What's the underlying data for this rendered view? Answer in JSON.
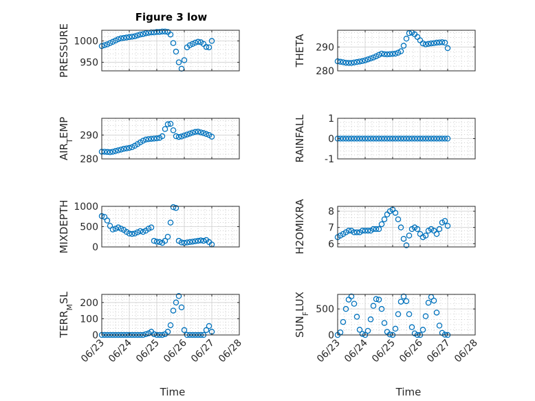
{
  "figure": {
    "title": "Figure 3 low",
    "marker_color": "#0072bd",
    "axis_color": "#262626",
    "grid_color": "#b0b0b0"
  },
  "time_axis": {
    "label": "Time",
    "ticks": [
      {
        "t": 0,
        "label": "06/23"
      },
      {
        "t": 1,
        "label": "06/24"
      },
      {
        "t": 2,
        "label": "06/25"
      },
      {
        "t": 3,
        "label": "06/26"
      },
      {
        "t": 4,
        "label": "06/27"
      },
      {
        "t": 5,
        "label": "06/28"
      }
    ]
  },
  "chart_data": [
    {
      "type": "scatter",
      "name": "pressure",
      "ylabel": "PRESSURE",
      "xlim": [
        0,
        5
      ],
      "ylim": [
        930,
        1025
      ],
      "yticks": [
        950,
        1000
      ],
      "x": [
        0,
        0.1,
        0.2,
        0.3,
        0.4,
        0.5,
        0.6,
        0.7,
        0.8,
        0.9,
        1.0,
        1.1,
        1.2,
        1.3,
        1.4,
        1.5,
        1.6,
        1.7,
        1.8,
        1.9,
        2.0,
        2.1,
        2.2,
        2.3,
        2.4,
        2.5,
        2.6,
        2.7,
        2.8,
        2.9,
        3.0,
        3.1,
        3.2,
        3.3,
        3.4,
        3.5,
        3.6,
        3.7,
        3.8,
        3.9,
        4.0
      ],
      "y": [
        988,
        990,
        992,
        995,
        998,
        1001,
        1004,
        1006,
        1007,
        1008,
        1009,
        1010,
        1011,
        1013,
        1015,
        1016,
        1018,
        1019,
        1020,
        1020,
        1021,
        1021,
        1022,
        1022,
        1021,
        1015,
        995,
        975,
        950,
        935,
        955,
        985,
        990,
        993,
        996,
        998,
        997,
        993,
        986,
        985,
        1000
      ]
    },
    {
      "type": "scatter",
      "name": "theta",
      "ylabel": "THETA",
      "xlim": [
        0,
        5
      ],
      "ylim": [
        280,
        297
      ],
      "yticks": [
        280,
        290
      ],
      "x": [
        0,
        0.1,
        0.2,
        0.3,
        0.4,
        0.5,
        0.6,
        0.7,
        0.8,
        0.9,
        1.0,
        1.1,
        1.2,
        1.3,
        1.4,
        1.5,
        1.6,
        1.7,
        1.8,
        1.9,
        2.0,
        2.1,
        2.2,
        2.3,
        2.4,
        2.5,
        2.6,
        2.7,
        2.8,
        2.9,
        3.0,
        3.1,
        3.2,
        3.3,
        3.4,
        3.5,
        3.6,
        3.7,
        3.8,
        3.9,
        4.0
      ],
      "y": [
        284,
        283.8,
        283.6,
        283.4,
        283.3,
        283.3,
        283.5,
        283.7,
        283.9,
        284.1,
        284.4,
        284.8,
        285.2,
        285.6,
        286.1,
        286.7,
        287.2,
        287.0,
        286.9,
        287.0,
        287.1,
        287.2,
        287.6,
        288.2,
        290.5,
        293.5,
        295.8,
        296.0,
        295.3,
        294.2,
        292.8,
        291.5,
        291.1,
        291.3,
        291.5,
        291.6,
        291.8,
        291.9,
        292.0,
        291.8,
        289.5
      ]
    },
    {
      "type": "scatter",
      "name": "air_temp",
      "ylabel": "AIR_TEMP",
      "xlim": [
        0,
        5
      ],
      "ylim": [
        280,
        297
      ],
      "yticks": [
        280,
        290
      ],
      "x": [
        0,
        0.1,
        0.2,
        0.3,
        0.4,
        0.5,
        0.6,
        0.7,
        0.8,
        0.9,
        1.0,
        1.1,
        1.2,
        1.3,
        1.4,
        1.5,
        1.6,
        1.7,
        1.8,
        1.9,
        2.0,
        2.1,
        2.2,
        2.3,
        2.4,
        2.5,
        2.6,
        2.7,
        2.8,
        2.9,
        3.0,
        3.1,
        3.2,
        3.3,
        3.4,
        3.5,
        3.6,
        3.7,
        3.8,
        3.9,
        4.0
      ],
      "y": [
        283,
        283,
        282.9,
        282.8,
        283.0,
        283.3,
        283.6,
        283.9,
        284.2,
        284.4,
        284.6,
        284.9,
        285.5,
        286.2,
        286.9,
        287.6,
        288.1,
        288.3,
        288.4,
        288.5,
        288.6,
        288.8,
        289.5,
        292.5,
        294.5,
        294.7,
        292.0,
        289.5,
        289.2,
        289.4,
        289.8,
        290.2,
        290.6,
        291.0,
        291.3,
        291.4,
        291.1,
        290.8,
        290.4,
        290.0,
        289.3
      ]
    },
    {
      "type": "scatter",
      "name": "rainfall",
      "ylabel": "RAINFALL",
      "xlim": [
        0,
        5
      ],
      "ylim": [
        -1,
        1
      ],
      "yticks": [
        -1,
        0,
        1
      ],
      "x": [
        0,
        0.1,
        0.2,
        0.3,
        0.4,
        0.5,
        0.6,
        0.7,
        0.8,
        0.9,
        1.0,
        1.1,
        1.2,
        1.3,
        1.4,
        1.5,
        1.6,
        1.7,
        1.8,
        1.9,
        2.0,
        2.1,
        2.2,
        2.3,
        2.4,
        2.5,
        2.6,
        2.7,
        2.8,
        2.9,
        3.0,
        3.1,
        3.2,
        3.3,
        3.4,
        3.5,
        3.6,
        3.7,
        3.8,
        3.9,
        4.0
      ],
      "y": [
        0,
        0,
        0,
        0,
        0,
        0,
        0,
        0,
        0,
        0,
        0,
        0,
        0,
        0,
        0,
        0,
        0,
        0,
        0,
        0,
        0,
        0,
        0,
        0,
        0,
        0,
        0,
        0,
        0,
        0,
        0,
        0,
        0,
        0,
        0,
        0,
        0,
        0,
        0,
        0,
        0
      ]
    },
    {
      "type": "scatter",
      "name": "mixdepth",
      "ylabel": "MIXDEPTH",
      "xlim": [
        0,
        5
      ],
      "ylim": [
        0,
        1000
      ],
      "yticks": [
        0,
        500,
        1000
      ],
      "x": [
        0,
        0.1,
        0.2,
        0.3,
        0.4,
        0.5,
        0.6,
        0.7,
        0.8,
        0.9,
        1.0,
        1.1,
        1.2,
        1.3,
        1.4,
        1.5,
        1.6,
        1.7,
        1.8,
        1.9,
        2.0,
        2.1,
        2.2,
        2.3,
        2.4,
        2.5,
        2.6,
        2.7,
        2.8,
        2.9,
        3.0,
        3.1,
        3.2,
        3.3,
        3.4,
        3.5,
        3.6,
        3.7,
        3.8,
        3.9,
        4.0
      ],
      "y": [
        760,
        740,
        650,
        520,
        430,
        450,
        480,
        450,
        420,
        370,
        330,
        320,
        330,
        360,
        390,
        370,
        400,
        450,
        480,
        150,
        130,
        120,
        100,
        150,
        250,
        600,
        980,
        960,
        150,
        110,
        100,
        110,
        120,
        130,
        140,
        150,
        160,
        150,
        170,
        120,
        60
      ]
    },
    {
      "type": "scatter",
      "name": "h2omixra",
      "ylabel": "H2OMIXRA",
      "xlim": [
        0,
        5
      ],
      "ylim": [
        5.8,
        8.3
      ],
      "yticks": [
        6,
        7,
        8
      ],
      "x": [
        0,
        0.1,
        0.2,
        0.3,
        0.4,
        0.5,
        0.6,
        0.7,
        0.8,
        0.9,
        1.0,
        1.1,
        1.2,
        1.3,
        1.4,
        1.5,
        1.6,
        1.7,
        1.8,
        1.9,
        2.0,
        2.1,
        2.2,
        2.3,
        2.4,
        2.5,
        2.6,
        2.7,
        2.8,
        2.9,
        3.0,
        3.1,
        3.2,
        3.3,
        3.4,
        3.5,
        3.6,
        3.7,
        3.8,
        3.9,
        4.0
      ],
      "y": [
        6.4,
        6.5,
        6.6,
        6.7,
        6.8,
        6.8,
        6.7,
        6.7,
        6.7,
        6.8,
        6.8,
        6.8,
        6.8,
        6.9,
        6.9,
        6.9,
        7.2,
        7.5,
        7.8,
        8.0,
        8.1,
        7.9,
        7.5,
        7.0,
        6.3,
        5.9,
        6.5,
        6.9,
        7.0,
        6.9,
        6.6,
        6.4,
        6.5,
        6.8,
        6.9,
        6.8,
        6.6,
        6.9,
        7.3,
        7.4,
        7.1
      ]
    },
    {
      "type": "scatter",
      "name": "terr_msl",
      "ylabel": "TERR_MSL",
      "xlim": [
        0,
        5
      ],
      "ylim": [
        0,
        250
      ],
      "yticks": [
        0,
        100,
        200
      ],
      "x": [
        0,
        0.1,
        0.2,
        0.3,
        0.4,
        0.5,
        0.6,
        0.7,
        0.8,
        0.9,
        1.0,
        1.1,
        1.2,
        1.3,
        1.4,
        1.5,
        1.6,
        1.7,
        1.8,
        1.9,
        2.0,
        2.1,
        2.2,
        2.3,
        2.4,
        2.5,
        2.6,
        2.7,
        2.8,
        2.9,
        3.0,
        3.1,
        3.2,
        3.3,
        3.4,
        3.5,
        3.6,
        3.7,
        3.8,
        3.9,
        4.0
      ],
      "y": [
        0,
        0,
        0,
        0,
        0,
        0,
        0,
        0,
        0,
        0,
        0,
        0,
        0,
        0,
        0,
        0,
        5,
        10,
        20,
        5,
        0,
        0,
        0,
        5,
        20,
        60,
        150,
        200,
        240,
        170,
        30,
        0,
        0,
        0,
        0,
        0,
        0,
        0,
        30,
        55,
        20
      ]
    },
    {
      "type": "scatter",
      "name": "sun_flux",
      "ylabel": "SUN_FLUX",
      "xlim": [
        0,
        5
      ],
      "ylim": [
        0,
        780
      ],
      "yticks": [
        0,
        500
      ],
      "x": [
        0,
        0.1,
        0.2,
        0.3,
        0.4,
        0.5,
        0.6,
        0.7,
        0.8,
        0.9,
        1.0,
        1.1,
        1.2,
        1.3,
        1.4,
        1.5,
        1.6,
        1.7,
        1.8,
        1.9,
        2.0,
        2.1,
        2.2,
        2.3,
        2.4,
        2.5,
        2.6,
        2.7,
        2.8,
        2.9,
        3.0,
        3.1,
        3.2,
        3.3,
        3.4,
        3.5,
        3.6,
        3.7,
        3.8,
        3.9,
        4.0
      ],
      "y": [
        0,
        50,
        250,
        500,
        680,
        740,
        600,
        350,
        100,
        20,
        0,
        80,
        300,
        560,
        690,
        680,
        500,
        230,
        60,
        10,
        0,
        120,
        400,
        640,
        740,
        650,
        400,
        150,
        30,
        0,
        0,
        100,
        360,
        620,
        730,
        660,
        430,
        180,
        40,
        5,
        0
      ]
    }
  ]
}
